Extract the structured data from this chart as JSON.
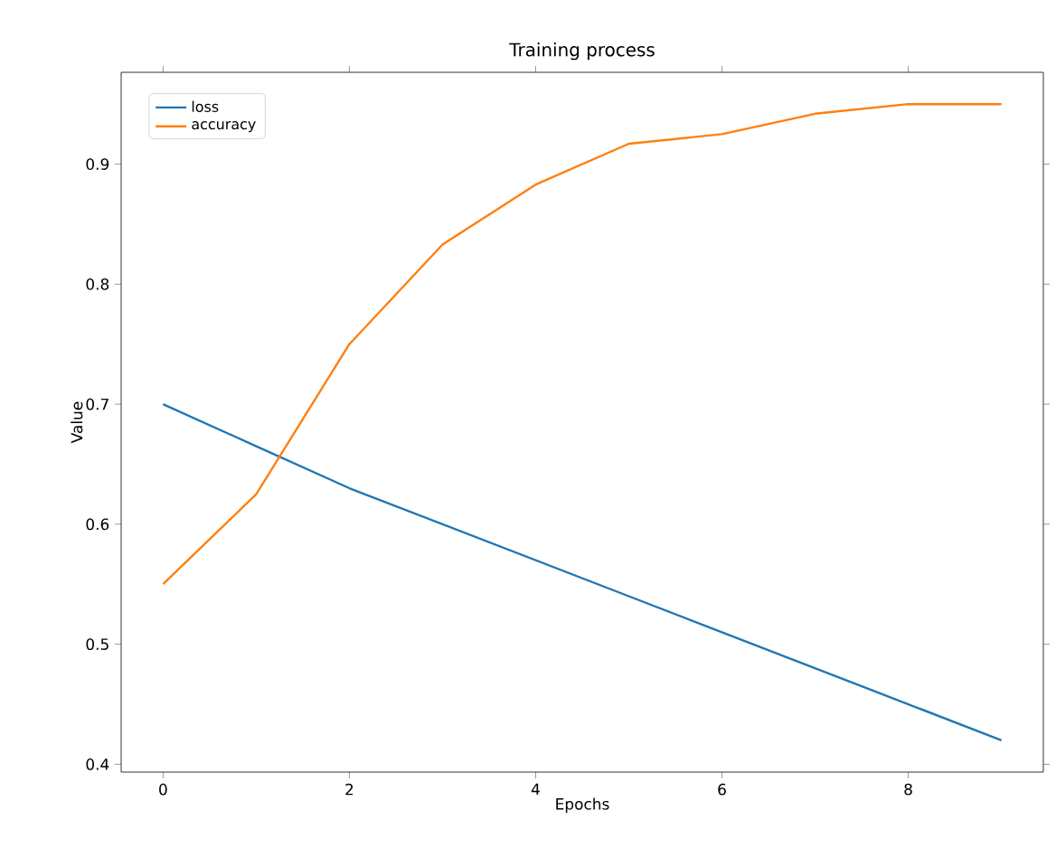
{
  "chart_data": {
    "type": "line",
    "title": "Training process",
    "xlabel": "Epochs",
    "ylabel": "Value",
    "x": [
      0,
      1,
      2,
      3,
      4,
      5,
      6,
      7,
      8,
      9
    ],
    "series": [
      {
        "name": "loss",
        "color": "#1f77b4",
        "values": [
          0.7,
          0.665,
          0.63,
          0.6,
          0.57,
          0.54,
          0.51,
          0.48,
          0.45,
          0.42
        ]
      },
      {
        "name": "accuracy",
        "color": "#ff7f0e",
        "values": [
          0.55,
          0.625,
          0.75,
          0.833,
          0.883,
          0.917,
          0.925,
          0.942,
          0.95,
          0.95
        ]
      }
    ],
    "xlim": [
      -0.45,
      9.45
    ],
    "ylim": [
      0.3935,
      0.9765
    ],
    "xticks": [
      0,
      2,
      4,
      6,
      8
    ],
    "yticks": [
      0.4,
      0.5,
      0.6,
      0.7,
      0.8,
      0.9
    ],
    "legend": "top left",
    "grid": false,
    "marker": "none",
    "line_style": "solid"
  }
}
